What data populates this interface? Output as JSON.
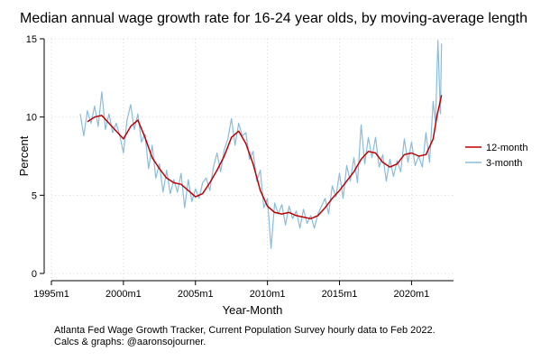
{
  "chart_data": {
    "type": "line",
    "title": "Median annual wage growth rate for 16-24 year olds, by moving-average length",
    "xlabel": "Year-Month",
    "ylabel": "Percent",
    "xlim": [
      "1995m1",
      "2022m12"
    ],
    "ylim": [
      0,
      15
    ],
    "x_ticks": [
      "1995m1",
      "2000m1",
      "2005m1",
      "2010m1",
      "2015m1",
      "2020m1"
    ],
    "y_ticks": [
      0,
      5,
      10,
      15
    ],
    "grid": true,
    "legend_position": "right",
    "series": [
      {
        "name": "12-month",
        "color": "#c00000",
        "points": [
          [
            "1997m7",
            9.7
          ],
          [
            "1998m1",
            10.0
          ],
          [
            "1998m7",
            10.1
          ],
          [
            "1999m1",
            9.6
          ],
          [
            "1999m7",
            9.1
          ],
          [
            "2000m1",
            8.6
          ],
          [
            "2000m7",
            9.4
          ],
          [
            "2001m1",
            9.8
          ],
          [
            "2001m7",
            8.7
          ],
          [
            "2002m1",
            7.4
          ],
          [
            "2002m7",
            6.7
          ],
          [
            "2003m1",
            6.1
          ],
          [
            "2003m7",
            5.8
          ],
          [
            "2004m1",
            5.7
          ],
          [
            "2004m7",
            5.3
          ],
          [
            "2005m1",
            4.9
          ],
          [
            "2005m7",
            5.1
          ],
          [
            "2006m1",
            5.8
          ],
          [
            "2006m7",
            6.6
          ],
          [
            "2007m1",
            7.5
          ],
          [
            "2007m7",
            8.7
          ],
          [
            "2008m1",
            9.1
          ],
          [
            "2008m7",
            8.3
          ],
          [
            "2009m1",
            7.0
          ],
          [
            "2009m7",
            5.3
          ],
          [
            "2010m1",
            4.3
          ],
          [
            "2010m7",
            3.9
          ],
          [
            "2011m1",
            3.8
          ],
          [
            "2011m7",
            3.9
          ],
          [
            "2012m1",
            3.7
          ],
          [
            "2012m7",
            3.6
          ],
          [
            "2013m1",
            3.5
          ],
          [
            "2013m7",
            3.7
          ],
          [
            "2014m1",
            4.2
          ],
          [
            "2014m7",
            4.8
          ],
          [
            "2015m1",
            5.3
          ],
          [
            "2015m7",
            5.9
          ],
          [
            "2016m1",
            6.5
          ],
          [
            "2016m7",
            7.3
          ],
          [
            "2017m1",
            7.8
          ],
          [
            "2017m7",
            7.7
          ],
          [
            "2018m1",
            7.1
          ],
          [
            "2018m7",
            6.8
          ],
          [
            "2019m1",
            7.0
          ],
          [
            "2019m7",
            7.6
          ],
          [
            "2020m1",
            7.7
          ],
          [
            "2020m7",
            7.5
          ],
          [
            "2021m1",
            7.6
          ],
          [
            "2021m7",
            8.6
          ],
          [
            "2021m10",
            10.0
          ],
          [
            "2022m2",
            11.4
          ]
        ]
      },
      {
        "name": "3-month",
        "color": "#87bde0",
        "points": [
          [
            "1997m1",
            10.2
          ],
          [
            "1997m4",
            8.8
          ],
          [
            "1997m7",
            10.4
          ],
          [
            "1997m10",
            9.6
          ],
          [
            "1998m1",
            10.7
          ],
          [
            "1998m4",
            9.4
          ],
          [
            "1998m7",
            11.6
          ],
          [
            "1998m10",
            9.2
          ],
          [
            "1999m1",
            10.2
          ],
          [
            "1999m4",
            9.0
          ],
          [
            "1999m7",
            9.6
          ],
          [
            "1999m10",
            8.8
          ],
          [
            "2000m1",
            7.7
          ],
          [
            "2000m4",
            9.8
          ],
          [
            "2000m7",
            10.8
          ],
          [
            "2000m10",
            9.2
          ],
          [
            "2001m1",
            10.2
          ],
          [
            "2001m4",
            8.4
          ],
          [
            "2001m7",
            8.9
          ],
          [
            "2001m10",
            6.7
          ],
          [
            "2002m1",
            8.2
          ],
          [
            "2002m4",
            6.1
          ],
          [
            "2002m7",
            7.0
          ],
          [
            "2002m10",
            5.2
          ],
          [
            "2003m1",
            6.6
          ],
          [
            "2003m4",
            5.1
          ],
          [
            "2003m7",
            6.0
          ],
          [
            "2003m10",
            5.2
          ],
          [
            "2004m1",
            6.4
          ],
          [
            "2004m4",
            4.2
          ],
          [
            "2004m7",
            6.0
          ],
          [
            "2004m10",
            4.6
          ],
          [
            "2005m1",
            5.4
          ],
          [
            "2005m4",
            4.8
          ],
          [
            "2005m7",
            5.8
          ],
          [
            "2005m10",
            6.1
          ],
          [
            "2006m1",
            5.3
          ],
          [
            "2006m4",
            6.8
          ],
          [
            "2006m7",
            7.7
          ],
          [
            "2006m10",
            6.5
          ],
          [
            "2007m1",
            7.9
          ],
          [
            "2007m4",
            8.6
          ],
          [
            "2007m7",
            9.9
          ],
          [
            "2007m10",
            8.2
          ],
          [
            "2008m1",
            9.6
          ],
          [
            "2008m4",
            8.8
          ],
          [
            "2008m7",
            9.0
          ],
          [
            "2008m10",
            7.3
          ],
          [
            "2009m1",
            7.8
          ],
          [
            "2009m4",
            5.9
          ],
          [
            "2009m7",
            6.6
          ],
          [
            "2009m10",
            4.2
          ],
          [
            "2010m1",
            4.8
          ],
          [
            "2010m4",
            1.6
          ],
          [
            "2010m7",
            4.5
          ],
          [
            "2010m10",
            3.8
          ],
          [
            "2011m1",
            4.4
          ],
          [
            "2011m4",
            3.1
          ],
          [
            "2011m7",
            4.3
          ],
          [
            "2011m10",
            3.5
          ],
          [
            "2012m1",
            4.0
          ],
          [
            "2012m4",
            2.9
          ],
          [
            "2012m7",
            4.1
          ],
          [
            "2012m10",
            3.2
          ],
          [
            "2013m1",
            3.7
          ],
          [
            "2013m4",
            2.9
          ],
          [
            "2013m7",
            3.8
          ],
          [
            "2013m10",
            4.3
          ],
          [
            "2014m1",
            4.8
          ],
          [
            "2014m4",
            3.8
          ],
          [
            "2014m7",
            5.6
          ],
          [
            "2014m10",
            4.9
          ],
          [
            "2015m1",
            6.4
          ],
          [
            "2015m4",
            4.8
          ],
          [
            "2015m7",
            6.9
          ],
          [
            "2015m10",
            5.9
          ],
          [
            "2016m1",
            7.4
          ],
          [
            "2016m4",
            5.8
          ],
          [
            "2016m7",
            9.5
          ],
          [
            "2016m10",
            7.0
          ],
          [
            "2017m1",
            8.7
          ],
          [
            "2017m4",
            7.4
          ],
          [
            "2017m7",
            8.7
          ],
          [
            "2017m10",
            6.8
          ],
          [
            "2018m1",
            7.6
          ],
          [
            "2018m4",
            5.9
          ],
          [
            "2018m7",
            7.3
          ],
          [
            "2018m10",
            6.2
          ],
          [
            "2019m1",
            7.2
          ],
          [
            "2019m4",
            6.5
          ],
          [
            "2019m7",
            8.6
          ],
          [
            "2019m10",
            7.1
          ],
          [
            "2020m1",
            8.4
          ],
          [
            "2020m4",
            6.9
          ],
          [
            "2020m7",
            7.5
          ],
          [
            "2020m10",
            6.8
          ],
          [
            "2021m1",
            9.0
          ],
          [
            "2021m4",
            7.1
          ],
          [
            "2021m7",
            11.0
          ],
          [
            "2021m9",
            9.6
          ],
          [
            "2021m11",
            14.9
          ],
          [
            "2022m1",
            10.2
          ],
          [
            "2022m2",
            14.7
          ]
        ]
      }
    ]
  },
  "footnote": {
    "line1": "Atlanta Fed Wage Growth Tracker, Current Population Survey hourly data to Feb 2022.",
    "line2": "Calcs & graphs: @aaronsojourner."
  }
}
